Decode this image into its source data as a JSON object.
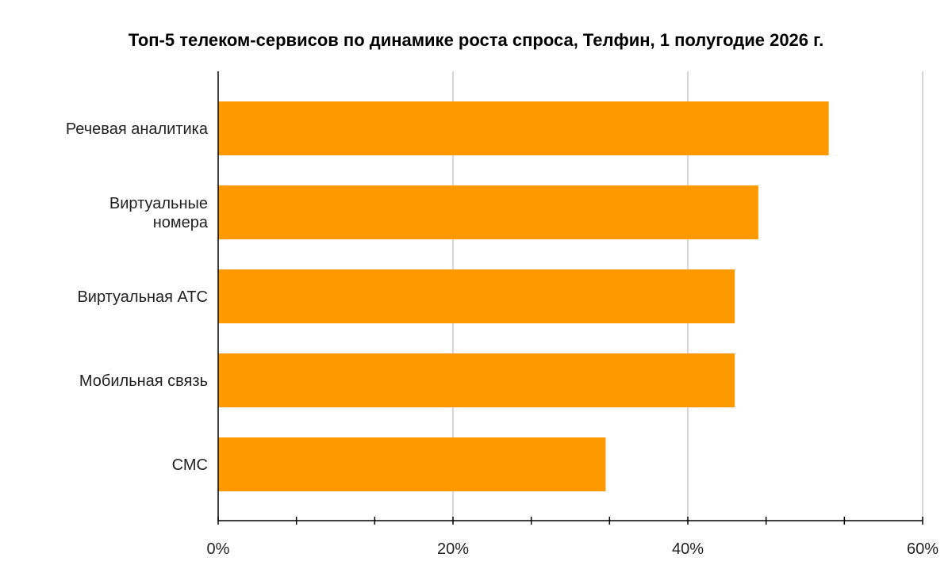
{
  "chart_data": {
    "type": "bar",
    "orientation": "horizontal",
    "title": "Топ-5 телеком-сервисов по динамике роста спроса, Телфин, 1 полугодие 2026 г.",
    "categories": [
      [
        "Речевая аналитика"
      ],
      [
        "Виртуальные",
        "номера"
      ],
      [
        "Виртуальная АТС"
      ],
      [
        "Мобильная связь"
      ],
      [
        "СМС"
      ]
    ],
    "values": [
      52,
      46,
      44,
      44,
      33
    ],
    "xlim": [
      0,
      60
    ],
    "x_ticks": [
      0,
      20,
      40,
      60
    ],
    "x_tick_labels": [
      "0%",
      "20%",
      "40%",
      "60%"
    ],
    "minor_tick_count": 9,
    "grid": true,
    "bar_color": "#FF9900",
    "grid_color": "#CCCCCC",
    "axis_color": "#000000"
  }
}
